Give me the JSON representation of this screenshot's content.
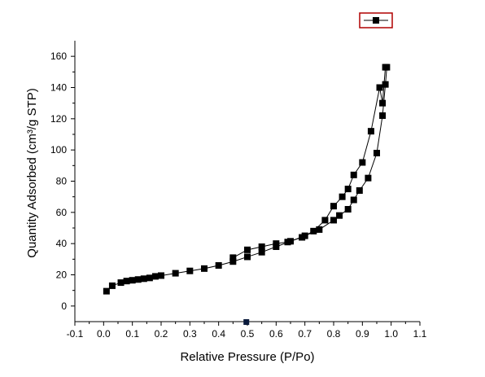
{
  "chart_data": {
    "type": "scatter",
    "title": "",
    "xlabel": "Relative Pressure (P/Po)",
    "ylabel": "Quantity Adsorbed (cm³/g STP)",
    "xlim": [
      -0.1,
      1.1
    ],
    "ylim": [
      -10,
      170
    ],
    "x_ticks": [
      "-0.1",
      "0.0",
      "0.1",
      "0.2",
      "0.3",
      "0.4",
      "0.5",
      "0.6",
      "0.7",
      "0.8",
      "0.9",
      "1.0",
      "1.1"
    ],
    "y_ticks": [
      "0",
      "20",
      "40",
      "60",
      "80",
      "100",
      "120",
      "140",
      "160"
    ],
    "grid": false,
    "legend": "top-right",
    "marker": "filled-square",
    "series": [
      {
        "name": "",
        "x": [
          0.01,
          0.03,
          0.06,
          0.08,
          0.1,
          0.12,
          0.14,
          0.16,
          0.18,
          0.2,
          0.25,
          0.3,
          0.35,
          0.4,
          0.45,
          0.5,
          0.55,
          0.6,
          0.65,
          0.7,
          0.75,
          0.8,
          0.82,
          0.85,
          0.87,
          0.89,
          0.92,
          0.95,
          0.97,
          0.98,
          0.985
        ],
        "y": [
          9.5,
          13,
          15,
          16,
          16.5,
          17,
          17.5,
          18,
          19,
          19.5,
          21,
          22.5,
          24,
          26,
          28.5,
          31.5,
          34.5,
          38,
          41.5,
          45,
          49,
          55,
          58,
          62,
          68,
          74,
          82,
          98,
          122,
          142,
          153
        ]
      },
      {
        "name": "",
        "x": [
          0.98,
          0.97,
          0.96,
          0.93,
          0.9,
          0.87,
          0.85,
          0.83,
          0.8,
          0.77,
          0.73,
          0.69,
          0.64,
          0.6,
          0.55,
          0.5,
          0.45
        ],
        "y": [
          153,
          130,
          140,
          112,
          92,
          84,
          75,
          70,
          64,
          55,
          48,
          44,
          41,
          40,
          38,
          36,
          31
        ]
      }
    ],
    "annotations": [
      {
        "type": "stray-marker",
        "x": 0.495,
        "y": -10
      }
    ]
  }
}
